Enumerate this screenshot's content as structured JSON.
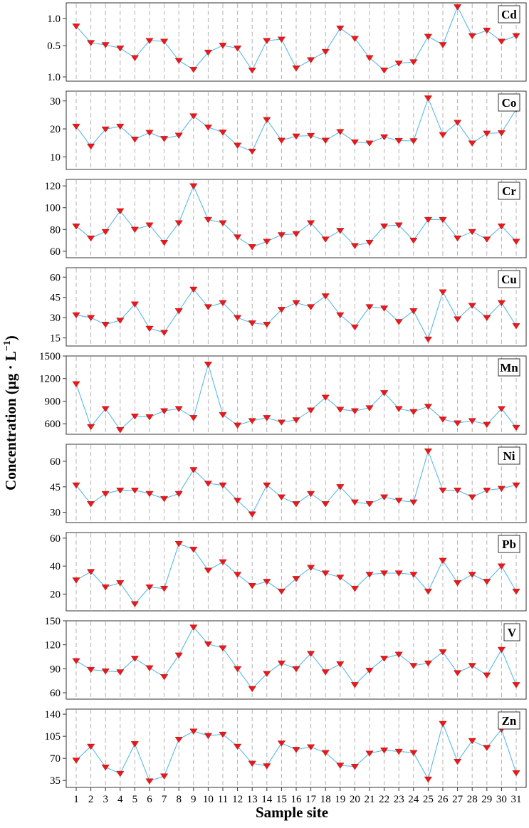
{
  "chart_data": {
    "type": "line",
    "xlabel": "Sample site",
    "ylabel": "Concentration (μg · L⁻¹)",
    "ylabel_main": "Concentration (μg · L",
    "ylabel_sup": "−1",
    "ylabel_close": ")",
    "x": [
      1,
      2,
      3,
      4,
      5,
      6,
      7,
      8,
      9,
      10,
      11,
      12,
      13,
      14,
      15,
      16,
      17,
      18,
      19,
      20,
      21,
      22,
      23,
      24,
      25,
      26,
      27,
      28,
      29,
      30,
      31
    ],
    "line_color": "#5bb8e8",
    "marker_color": "#e8191b",
    "panels": [
      {
        "name": "Cd",
        "yticks": [
          1.0,
          0.5,
          1.0
        ],
        "ytick_labels": [
          "1.0",
          "0.5",
          "1.0"
        ],
        "ylim": [
          0,
          1.14
        ],
        "values": [
          0.8,
          0.56,
          0.53,
          0.48,
          0.34,
          0.59,
          0.58,
          0.3,
          0.17,
          0.42,
          0.52,
          0.48,
          0.16,
          0.59,
          0.61,
          0.19,
          0.31,
          0.43,
          0.77,
          0.62,
          0.34,
          0.16,
          0.26,
          0.28,
          0.65,
          0.53,
          1.08,
          0.66,
          0.74,
          0.58,
          0.66
        ]
      },
      {
        "name": "Co",
        "yticks": [
          10,
          20,
          30
        ],
        "ytick_labels": [
          "10",
          "20",
          "30"
        ],
        "ylim": [
          5.5,
          33.5
        ],
        "values": [
          20.9,
          13.8,
          19.9,
          20.9,
          16.3,
          18.7,
          16.5,
          17.7,
          24.6,
          20.6,
          18.8,
          14.1,
          12.0,
          23.3,
          15.9,
          17.4,
          17.6,
          15.9,
          19.0,
          15.3,
          14.9,
          17.1,
          15.8,
          15.7,
          31.0,
          17.9,
          22.3,
          14.9,
          18.4,
          18.6,
          27.0
        ]
      },
      {
        "name": "Cr",
        "yticks": [
          60,
          80,
          100,
          120
        ],
        "ytick_labels": [
          "60",
          "80",
          "100",
          "120"
        ],
        "ylim": [
          54,
          126
        ],
        "values": [
          83,
          72,
          78,
          97,
          80,
          84,
          68,
          86,
          120,
          89,
          86,
          73,
          64,
          69,
          75,
          76,
          86,
          71,
          79,
          65,
          68,
          83,
          84,
          70,
          89,
          89,
          72,
          78,
          71,
          83,
          69
        ]
      },
      {
        "name": "Cu",
        "yticks": [
          15,
          30,
          45,
          60
        ],
        "ytick_labels": [
          "15",
          "30",
          "45",
          "60"
        ],
        "ylim": [
          9,
          67
        ],
        "values": [
          32,
          30,
          25,
          28,
          40,
          22,
          19,
          35,
          51,
          38,
          41,
          30,
          26,
          25,
          36,
          41,
          38,
          46,
          32,
          23,
          38,
          37,
          27,
          35,
          14,
          49,
          29,
          39,
          30,
          41,
          24
        ]
      },
      {
        "name": "Mn",
        "yticks": [
          600,
          900,
          1200,
          1500
        ],
        "ytick_labels": [
          "600",
          "900",
          "1200",
          "1500"
        ],
        "ylim": [
          460,
          1500
        ],
        "values": [
          1130,
          560,
          800,
          520,
          700,
          690,
          770,
          800,
          680,
          1390,
          720,
          580,
          640,
          680,
          620,
          650,
          780,
          950,
          790,
          770,
          810,
          1010,
          800,
          760,
          830,
          660,
          610,
          640,
          590,
          800,
          550
        ]
      },
      {
        "name": "Ni",
        "yticks": [
          30,
          45,
          60
        ],
        "ytick_labels": [
          "30",
          "45",
          "60"
        ],
        "ylim": [
          24,
          70
        ],
        "values": [
          46,
          35,
          41,
          43,
          43,
          41,
          38,
          41,
          55,
          47,
          46,
          37,
          29,
          46,
          39,
          35,
          41,
          35,
          45,
          36,
          35,
          39,
          37,
          36,
          66,
          43,
          43,
          39,
          43,
          44,
          46
        ]
      },
      {
        "name": "Pb",
        "yticks": [
          20,
          40,
          60
        ],
        "ytick_labels": [
          "20",
          "40",
          "60"
        ],
        "ylim": [
          8,
          64
        ],
        "values": [
          30,
          36,
          25,
          28,
          13,
          25,
          24,
          56,
          52,
          37,
          43,
          34,
          26,
          29,
          22,
          31,
          39,
          35,
          32,
          24,
          34,
          35,
          35,
          34,
          22,
          44,
          28,
          34,
          29,
          40,
          22
        ]
      },
      {
        "name": "V",
        "yticks": [
          60,
          90,
          120,
          150
        ],
        "ytick_labels": [
          "60",
          "90",
          "120",
          "150"
        ],
        "ylim": [
          52,
          150
        ],
        "values": [
          100,
          89,
          87,
          86,
          103,
          91,
          80,
          107,
          142,
          121,
          116,
          90,
          65,
          84,
          97,
          90,
          109,
          86,
          96,
          70,
          88,
          103,
          108,
          94,
          97,
          111,
          85,
          94,
          82,
          114,
          70
        ]
      },
      {
        "name": "Zn",
        "yticks": [
          35,
          70,
          105,
          140
        ],
        "ytick_labels": [
          "35",
          "70",
          "105",
          "140"
        ],
        "ylim": [
          24,
          148
        ],
        "values": [
          67,
          89,
          56,
          46,
          93,
          34,
          42,
          100,
          113,
          106,
          108,
          89,
          62,
          58,
          94,
          84,
          88,
          79,
          59,
          57,
          78,
          83,
          81,
          79,
          37,
          125,
          65,
          98,
          87,
          116,
          47
        ]
      }
    ]
  }
}
